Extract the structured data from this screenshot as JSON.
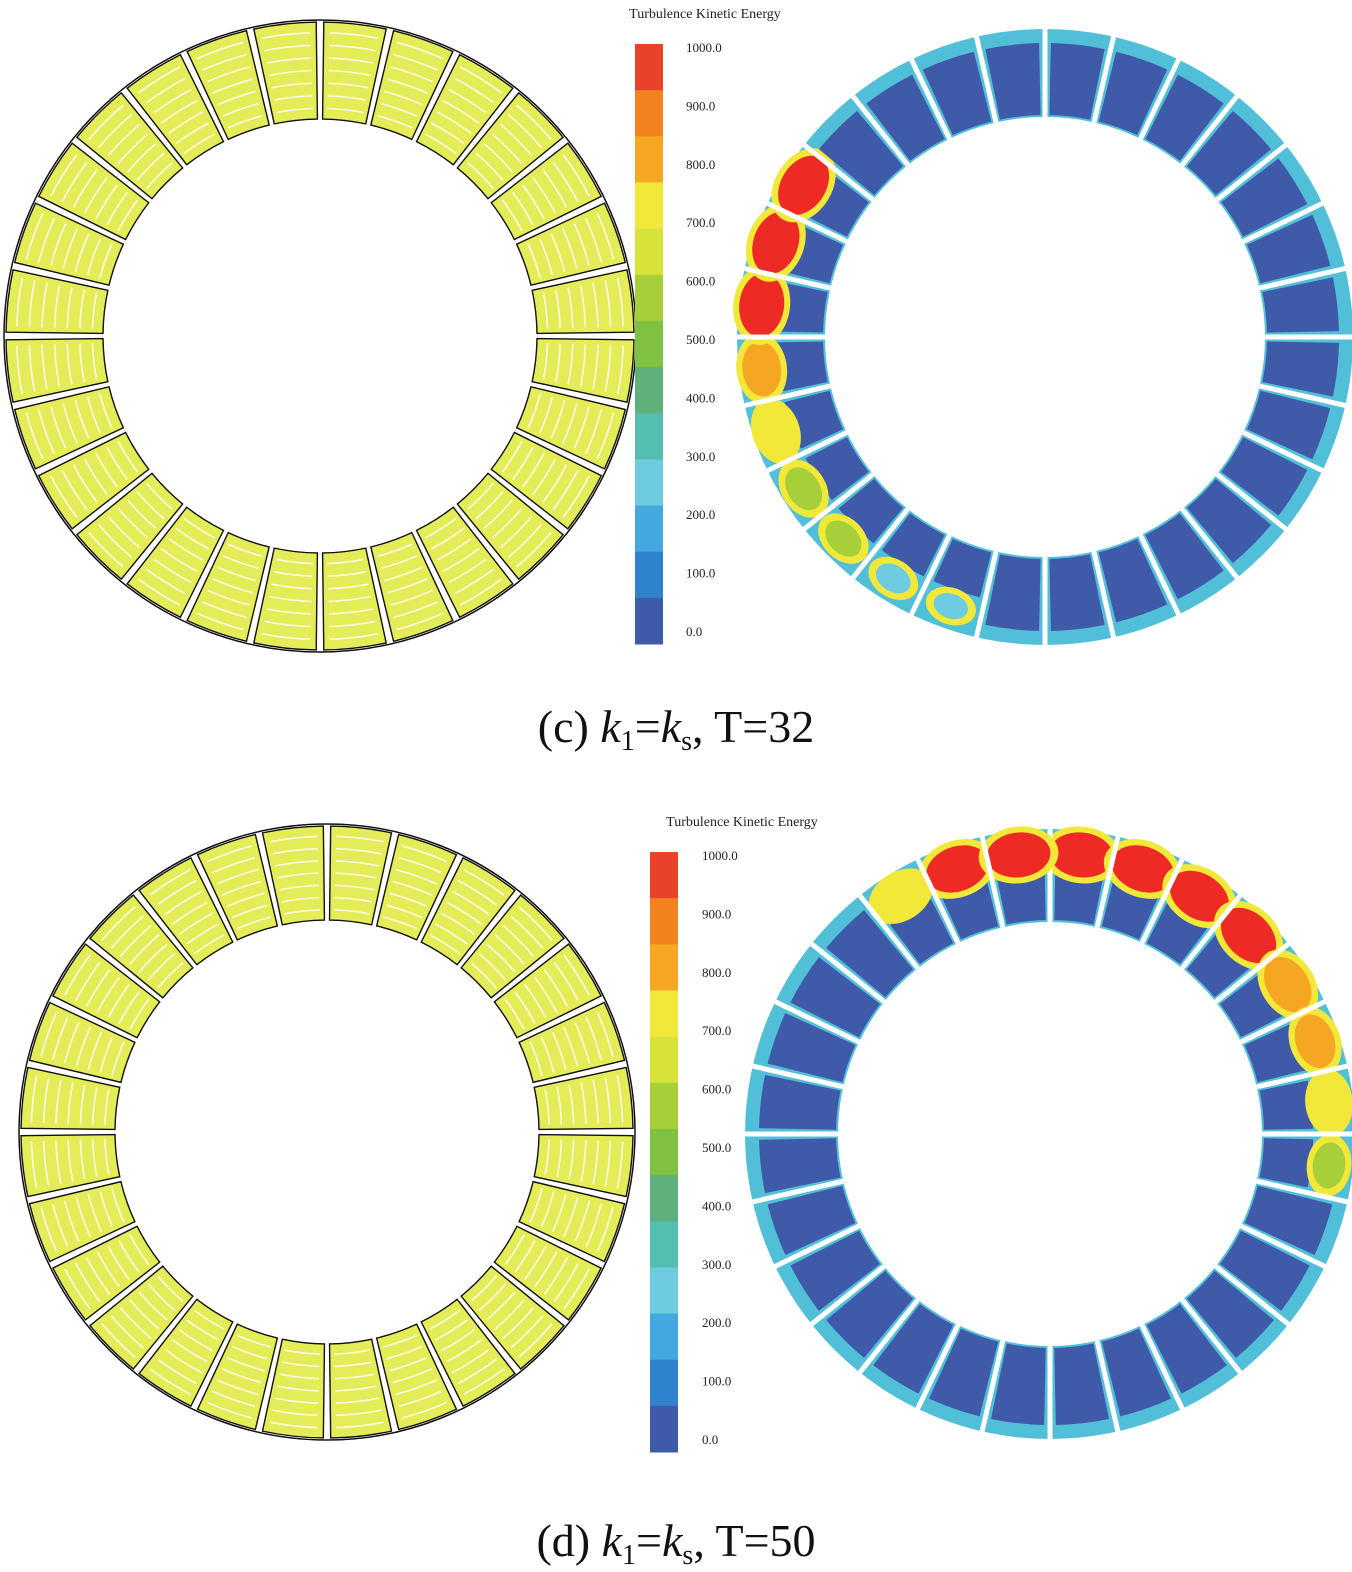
{
  "colorbar": {
    "title": "Turbulence Kinetic Energy",
    "ticks": [
      "1000.0",
      "900.0",
      "800.0",
      "700.0",
      "600.0",
      "500.0",
      "400.0",
      "300.0",
      "200.0",
      "100.0",
      "0.0"
    ],
    "colors": [
      "#e8432a",
      "#f2821e",
      "#f5a623",
      "#f2e83a",
      "#d7e23a",
      "#a6cf3a",
      "#7fc241",
      "#5fb07a",
      "#52bfb0",
      "#6fcbdf",
      "#43a8e0",
      "#2f82cc",
      "#3f5aa8"
    ]
  },
  "panels": [
    {
      "id": "c",
      "caption": {
        "prefix": "(c) ",
        "k1_var": "k",
        "k1_sub": "1",
        "eq": "=",
        "ks_var": "k",
        "ks_sub": "s",
        "suffix": ", T=32"
      },
      "hot_passages": [
        15,
        16,
        17,
        18,
        19,
        20,
        21,
        22,
        23
      ],
      "hot_levels": [
        0.35,
        0.4,
        0.5,
        0.6,
        0.7,
        0.8,
        1.0,
        1.0,
        1.0
      ]
    },
    {
      "id": "d",
      "caption": {
        "prefix": "(d) ",
        "k1_var": "k",
        "k1_sub": "1",
        "eq": "=",
        "ks_var": "k",
        "ks_sub": "s",
        "suffix": ", T=50"
      },
      "hot_passages": [
        0,
        1,
        2,
        3,
        4,
        5,
        6,
        7,
        25,
        26,
        27
      ],
      "hot_levels": [
        1.0,
        1.0,
        1.0,
        1.0,
        0.9,
        0.8,
        0.7,
        0.6,
        0.75,
        1.0,
        1.0
      ]
    }
  ]
}
